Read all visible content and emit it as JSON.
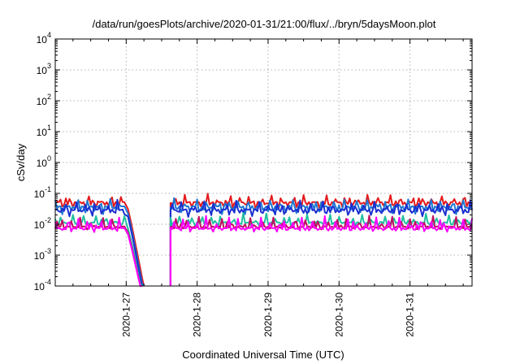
{
  "chart_data": {
    "type": "line",
    "title": "/data/run/goesPlots/archive/2020-01-31/21:00/flux/../bryn/5daysMoon.plot",
    "xlabel": "Coordinated Universal Time (UTC)",
    "ylabel": "cSv/day",
    "y_scale": "log",
    "ylim": [
      0.0001,
      10000
    ],
    "xlim": [
      "2020-01-26 00:00",
      "2020-01-31 21:00"
    ],
    "grid": true,
    "y_ticks": [
      {
        "base": "10",
        "exp": "-4"
      },
      {
        "base": "10",
        "exp": "-3"
      },
      {
        "base": "10",
        "exp": "-2"
      },
      {
        "base": "10",
        "exp": "-1"
      },
      {
        "base": "10",
        "exp": "0"
      },
      {
        "base": "10",
        "exp": "1"
      },
      {
        "base": "10",
        "exp": "2"
      },
      {
        "base": "10",
        "exp": "3"
      },
      {
        "base": "10",
        "exp": "4"
      }
    ],
    "x_ticks": [
      "2020-1-27",
      "2020-1-28",
      "2020-1-29",
      "2020-1-30",
      "2020-1-31"
    ],
    "x_tick_days": [
      1,
      2,
      3,
      4,
      5
    ],
    "x_span_days": 5.875,
    "gap_days": [
      1.27,
      1.625
    ],
    "series": [
      {
        "color": "#e41a1c",
        "base": 0.052,
        "amp": 0.03,
        "dip": 0.05,
        "lag": 0.2,
        "phase": 0.0
      },
      {
        "color": "#1f78d1",
        "base": 0.038,
        "amp": 0.03,
        "dip": 0.06,
        "lag": 0.15,
        "phase": 0.15
      },
      {
        "color": "#1a2fd0",
        "base": 0.03,
        "amp": 0.04,
        "dip": 0.05,
        "lag": 0.12,
        "phase": 0.4
      },
      {
        "color": "#20c0a0",
        "base": 0.0115,
        "amp": 0.035,
        "dip": 0.03,
        "lag": 0.08,
        "phase": 0.7
      },
      {
        "color": "#c01060",
        "base": 0.0085,
        "amp": 0.045,
        "dip": 0.025,
        "lag": 0.06,
        "phase": 1.0
      },
      {
        "color": "#ff00ff",
        "base": 0.0075,
        "amp": 0.06,
        "dip": 0.03,
        "lag": 0.05,
        "phase": 1.3
      }
    ]
  }
}
